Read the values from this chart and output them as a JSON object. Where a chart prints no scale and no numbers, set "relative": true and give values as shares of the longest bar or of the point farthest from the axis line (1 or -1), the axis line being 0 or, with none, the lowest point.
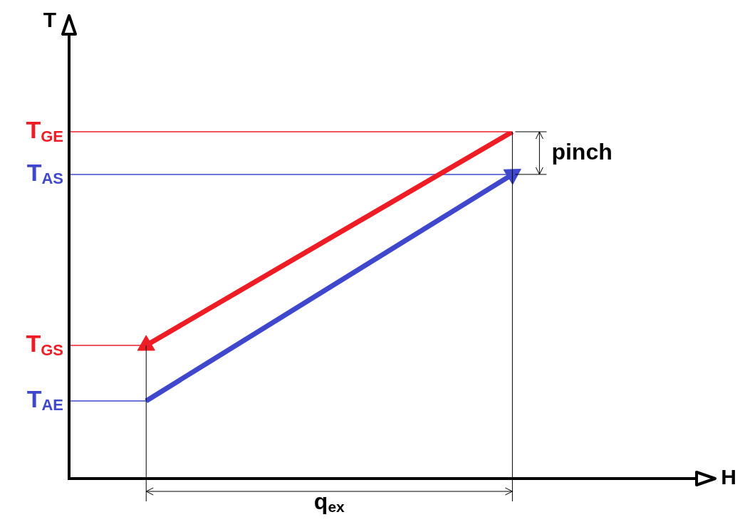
{
  "chart_data": {
    "type": "line",
    "relative": true,
    "xlabel": "H",
    "ylabel": "T",
    "categories": [
      null,
      null,
      null,
      null,
      null,
      null,
      null,
      null,
      null,
      null,
      null,
      null,
      null,
      null,
      null,
      null,
      null,
      null,
      null,
      null,
      null,
      null,
      null,
      null,
      null,
      null,
      null,
      null,
      null,
      null,
      null,
      null,
      null,
      null
    ],
    "series": [
      {
        "color": "#ee1c24",
        "values": [
          null,
          null,
          null,
          null,
          0.384,
          null,
          null,
          null,
          null,
          null,
          null,
          null,
          null,
          null,
          null,
          null,
          null,
          null,
          null,
          null,
          null,
          null,
          null,
          1,
          null,
          null,
          null,
          null,
          null,
          null,
          null,
          null,
          null,
          null
        ]
      },
      {
        "color": "#3f48cc",
        "values": [
          null,
          null,
          null,
          null,
          0.224,
          null,
          null,
          null,
          null,
          null,
          null,
          null,
          null,
          null,
          null,
          null,
          null,
          null,
          null,
          null,
          null,
          null,
          null,
          0.877,
          null,
          null,
          null,
          null,
          null,
          null,
          null,
          null,
          null,
          null
        ]
      }
    ],
    "ref_lines": [
      {
        "axis": "y",
        "value": 1,
        "label": "T$_{GE}$",
        "color": "#ee1c24"
      },
      {
        "axis": "y",
        "value": 0.877,
        "label": "T$_{AS}$",
        "color": "#3f48cc"
      },
      {
        "axis": "y",
        "value": 0.384,
        "label": "T$_{GS}$",
        "color": "#ee1c24"
      },
      {
        "axis": "y",
        "value": 0.224,
        "label": "T$_{AE}$",
        "color": "#3f48cc"
      }
    ],
    "annotations": [
      "pinch",
      "q$_{ex}$"
    ]
  }
}
